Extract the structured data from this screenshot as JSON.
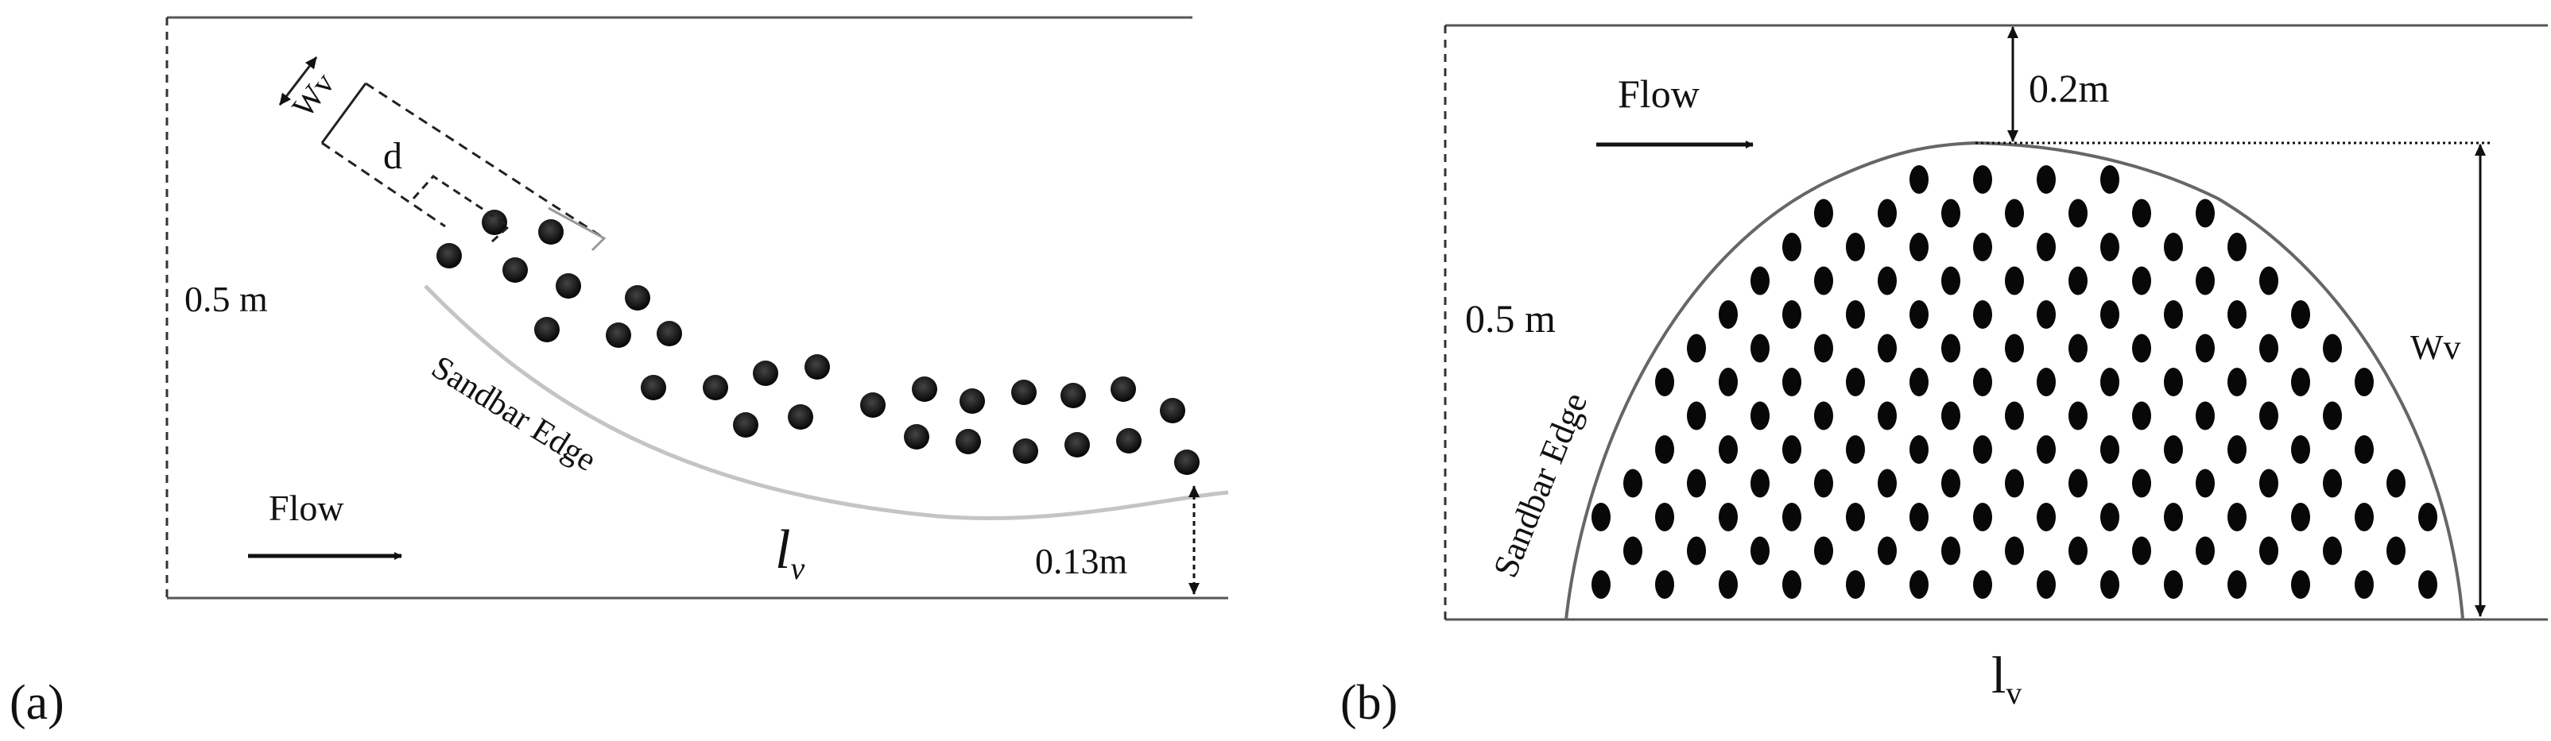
{
  "panel_a": {
    "tag": "(a)",
    "depth_label": "0.5 m",
    "flow_label": "Flow",
    "edge_label": "Sandbar Edge",
    "length_label": "l",
    "length_sub": "v",
    "width_label": "Wv",
    "spacing_label": "d",
    "offset_label": "0.13m"
  },
  "panel_b": {
    "tag": "(b)",
    "depth_label": "0.5 m",
    "flow_label": "Flow",
    "edge_label": "Sandbar Edge",
    "length_label": "l",
    "length_sub": "v",
    "width_label": "Wv",
    "gap_label": "0.2m"
  },
  "colors": {
    "line": "#555555",
    "dot": "#0a0a0a",
    "edge": "#bbbbbb"
  }
}
